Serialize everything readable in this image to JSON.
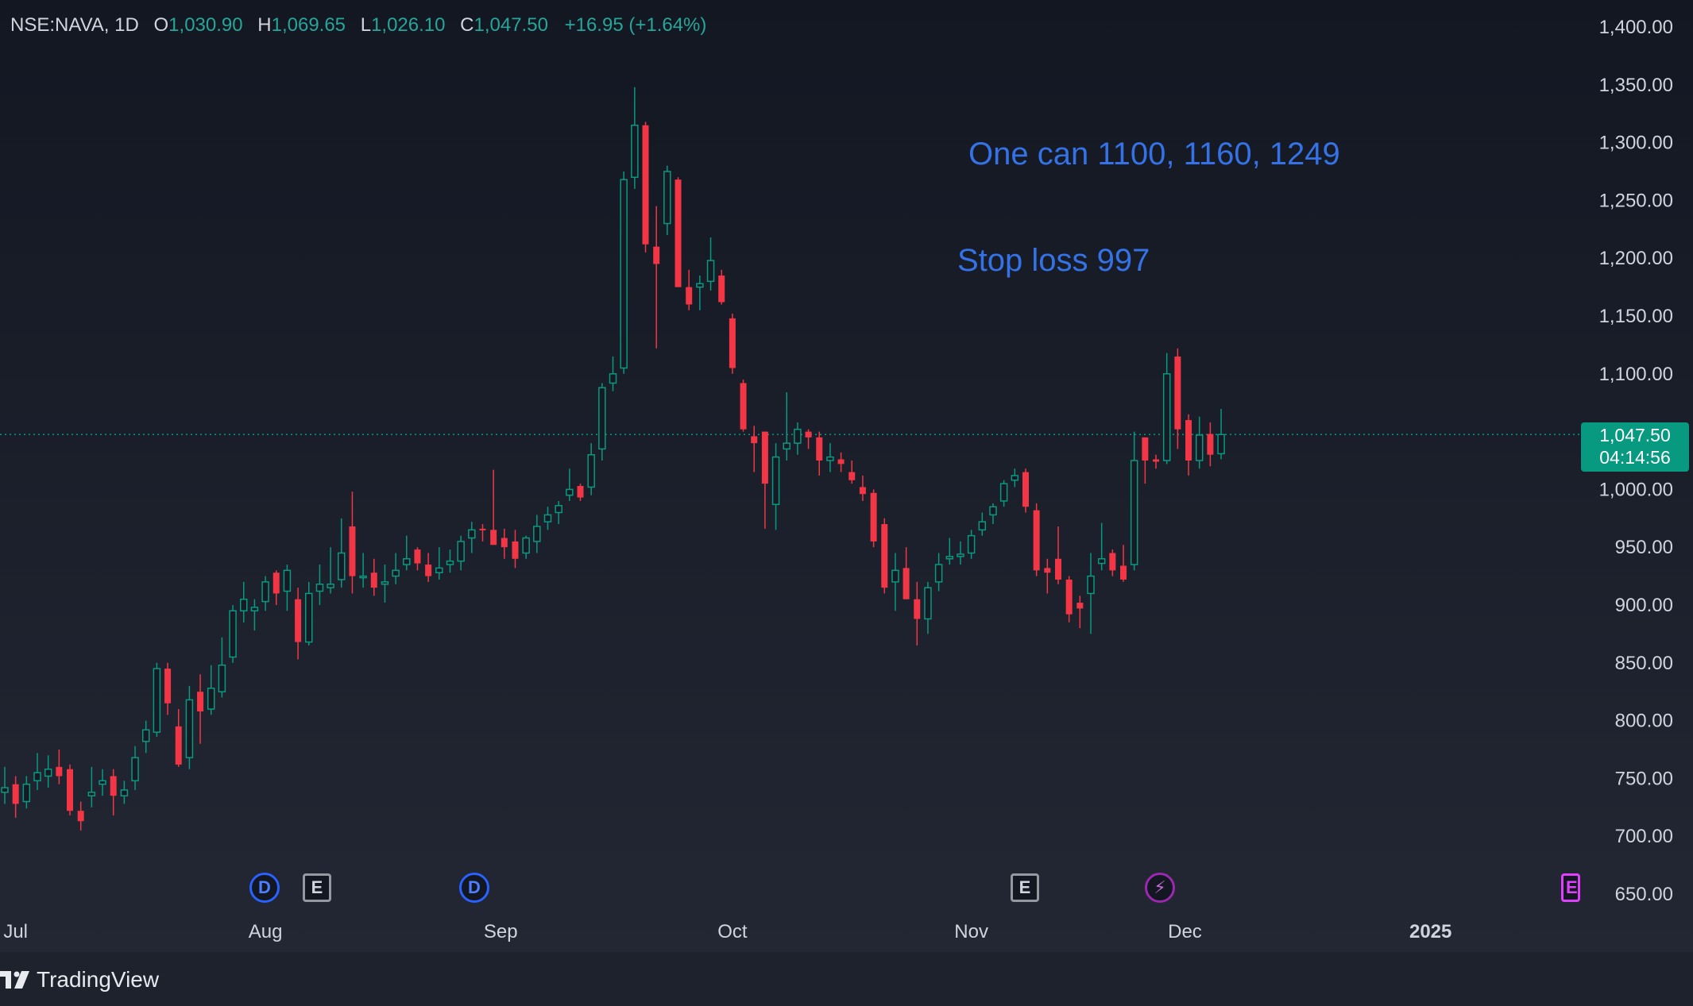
{
  "header": {
    "symbol": "NSE:NAVA, 1D",
    "open_label": "O",
    "open": "1,030.90",
    "high_label": "H",
    "high": "1,069.65",
    "low_label": "L",
    "low": "1,026.10",
    "close_label": "C",
    "close": "1,047.50",
    "change": "+16.95 (+1.64%)"
  },
  "price_tag": {
    "price": "1,047.50",
    "countdown": "04:14:56"
  },
  "annotations": [
    "One can 1100, 1160, 1249",
    "Stop loss 997"
  ],
  "events": [
    {
      "kind": "dividend",
      "glyph": "D",
      "icon": "dividend-icon"
    },
    {
      "kind": "earnings",
      "glyph": "E",
      "icon": "earnings-icon"
    },
    {
      "kind": "dividend",
      "glyph": "D",
      "icon": "dividend-icon"
    },
    {
      "kind": "earnings",
      "glyph": "E",
      "icon": "earnings-icon"
    },
    {
      "kind": "split",
      "glyph": "⚡",
      "icon": "lightning-icon"
    },
    {
      "kind": "earnings",
      "glyph": "E",
      "icon": "earnings-icon"
    }
  ],
  "brand": {
    "name": "TradingView",
    "icon": "tradingview-logo-icon"
  },
  "colors": {
    "up": "#089981",
    "down": "#f23645",
    "background": "#161a25",
    "text": "#d1d4dc",
    "annotation": "#3472e6",
    "last_price_line": "#089981"
  },
  "chart_data": {
    "type": "candlestick",
    "symbol": "NSE:NAVA",
    "interval": "1D",
    "y_ticks": [
      "650.00",
      "700.00",
      "750.00",
      "800.00",
      "850.00",
      "900.00",
      "950.00",
      "1,000.00",
      "1,050.00",
      "1,100.00",
      "1,150.00",
      "1,200.00",
      "1,250.00",
      "1,300.00",
      "1,350.00",
      "1,400.00"
    ],
    "ylim": [
      640,
      1405
    ],
    "x_labels": [
      "Jul",
      "Aug",
      "Sep",
      "Oct",
      "Nov",
      "Dec",
      "2025"
    ],
    "grid": false,
    "last_price": 1047.5,
    "candles": [
      {
        "date": "2024-06-28",
        "o": 738,
        "h": 760,
        "l": 728,
        "c": 742
      },
      {
        "date": "2024-07-01",
        "o": 745,
        "h": 752,
        "l": 716,
        "c": 728
      },
      {
        "date": "2024-07-02",
        "o": 730,
        "h": 752,
        "l": 724,
        "c": 745
      },
      {
        "date": "2024-07-03",
        "o": 748,
        "h": 772,
        "l": 740,
        "c": 755
      },
      {
        "date": "2024-07-04",
        "o": 752,
        "h": 770,
        "l": 742,
        "c": 758
      },
      {
        "date": "2024-07-05",
        "o": 760,
        "h": 775,
        "l": 745,
        "c": 752
      },
      {
        "date": "2024-07-08",
        "o": 758,
        "h": 762,
        "l": 718,
        "c": 722
      },
      {
        "date": "2024-07-09",
        "o": 722,
        "h": 730,
        "l": 705,
        "c": 713
      },
      {
        "date": "2024-07-10",
        "o": 735,
        "h": 760,
        "l": 725,
        "c": 738
      },
      {
        "date": "2024-07-11",
        "o": 745,
        "h": 758,
        "l": 735,
        "c": 748
      },
      {
        "date": "2024-07-12",
        "o": 752,
        "h": 758,
        "l": 718,
        "c": 735
      },
      {
        "date": "2024-07-15",
        "o": 735,
        "h": 748,
        "l": 728,
        "c": 740
      },
      {
        "date": "2024-07-16",
        "o": 748,
        "h": 778,
        "l": 740,
        "c": 768
      },
      {
        "date": "2024-07-17",
        "o": 782,
        "h": 800,
        "l": 772,
        "c": 792
      },
      {
        "date": "2024-07-18",
        "o": 790,
        "h": 850,
        "l": 786,
        "c": 845
      },
      {
        "date": "2024-07-19",
        "o": 845,
        "h": 850,
        "l": 805,
        "c": 815
      },
      {
        "date": "2024-07-22",
        "o": 795,
        "h": 810,
        "l": 760,
        "c": 762
      },
      {
        "date": "2024-07-23",
        "o": 768,
        "h": 830,
        "l": 758,
        "c": 818
      },
      {
        "date": "2024-07-24",
        "o": 825,
        "h": 840,
        "l": 780,
        "c": 808
      },
      {
        "date": "2024-07-25",
        "o": 810,
        "h": 848,
        "l": 805,
        "c": 828
      },
      {
        "date": "2024-07-26",
        "o": 825,
        "h": 872,
        "l": 820,
        "c": 848
      },
      {
        "date": "2024-07-29",
        "o": 855,
        "h": 900,
        "l": 850,
        "c": 895
      },
      {
        "date": "2024-07-30",
        "o": 895,
        "h": 920,
        "l": 885,
        "c": 905
      },
      {
        "date": "2024-07-31",
        "o": 895,
        "h": 905,
        "l": 878,
        "c": 898
      },
      {
        "date": "2024-08-01",
        "o": 903,
        "h": 925,
        "l": 895,
        "c": 920
      },
      {
        "date": "2024-08-02",
        "o": 928,
        "h": 930,
        "l": 900,
        "c": 910
      },
      {
        "date": "2024-08-05",
        "o": 912,
        "h": 935,
        "l": 895,
        "c": 930
      },
      {
        "date": "2024-08-06",
        "o": 905,
        "h": 915,
        "l": 853,
        "c": 868
      },
      {
        "date": "2024-08-07",
        "o": 868,
        "h": 920,
        "l": 865,
        "c": 910
      },
      {
        "date": "2024-08-08",
        "o": 912,
        "h": 935,
        "l": 900,
        "c": 918
      },
      {
        "date": "2024-08-09",
        "o": 915,
        "h": 950,
        "l": 910,
        "c": 918
      },
      {
        "date": "2024-08-12",
        "o": 922,
        "h": 975,
        "l": 915,
        "c": 945
      },
      {
        "date": "2024-08-13",
        "o": 968,
        "h": 998,
        "l": 910,
        "c": 925
      },
      {
        "date": "2024-08-14",
        "o": 924,
        "h": 945,
        "l": 915,
        "c": 925
      },
      {
        "date": "2024-08-15",
        "o": 928,
        "h": 940,
        "l": 908,
        "c": 915
      },
      {
        "date": "2024-08-16",
        "o": 918,
        "h": 935,
        "l": 902,
        "c": 920
      },
      {
        "date": "2024-08-19",
        "o": 925,
        "h": 945,
        "l": 918,
        "c": 930
      },
      {
        "date": "2024-08-20",
        "o": 935,
        "h": 960,
        "l": 930,
        "c": 940
      },
      {
        "date": "2024-08-21",
        "o": 948,
        "h": 950,
        "l": 930,
        "c": 936
      },
      {
        "date": "2024-08-22",
        "o": 935,
        "h": 945,
        "l": 920,
        "c": 925
      },
      {
        "date": "2024-08-23",
        "o": 928,
        "h": 950,
        "l": 922,
        "c": 932
      },
      {
        "date": "2024-08-26",
        "o": 935,
        "h": 948,
        "l": 928,
        "c": 938
      },
      {
        "date": "2024-08-27",
        "o": 938,
        "h": 960,
        "l": 930,
        "c": 955
      },
      {
        "date": "2024-08-28",
        "o": 958,
        "h": 972,
        "l": 945,
        "c": 965
      },
      {
        "date": "2024-08-29",
        "o": 966,
        "h": 970,
        "l": 955,
        "c": 965
      },
      {
        "date": "2024-08-30",
        "o": 965,
        "h": 1017,
        "l": 955,
        "c": 952
      },
      {
        "date": "2024-09-02",
        "o": 958,
        "h": 966,
        "l": 940,
        "c": 950
      },
      {
        "date": "2024-09-03",
        "o": 955,
        "h": 965,
        "l": 932,
        "c": 940
      },
      {
        "date": "2024-09-04",
        "o": 945,
        "h": 960,
        "l": 940,
        "c": 958
      },
      {
        "date": "2024-09-05",
        "o": 955,
        "h": 978,
        "l": 945,
        "c": 968
      },
      {
        "date": "2024-09-06",
        "o": 972,
        "h": 985,
        "l": 965,
        "c": 978
      },
      {
        "date": "2024-09-09",
        "o": 980,
        "h": 990,
        "l": 970,
        "c": 986
      },
      {
        "date": "2024-09-10",
        "o": 995,
        "h": 1018,
        "l": 990,
        "c": 1000
      },
      {
        "date": "2024-09-11",
        "o": 1003,
        "h": 1005,
        "l": 990,
        "c": 993
      },
      {
        "date": "2024-09-12",
        "o": 1002,
        "h": 1040,
        "l": 995,
        "c": 1030
      },
      {
        "date": "2024-09-13",
        "o": 1035,
        "h": 1092,
        "l": 1025,
        "c": 1088
      },
      {
        "date": "2024-09-16",
        "o": 1092,
        "h": 1115,
        "l": 1085,
        "c": 1100
      },
      {
        "date": "2024-09-17",
        "o": 1105,
        "h": 1275,
        "l": 1100,
        "c": 1268
      },
      {
        "date": "2024-09-18",
        "o": 1270,
        "h": 1348,
        "l": 1260,
        "c": 1315
      },
      {
        "date": "2024-09-19",
        "o": 1315,
        "h": 1318,
        "l": 1205,
        "c": 1212
      },
      {
        "date": "2024-09-20",
        "o": 1210,
        "h": 1245,
        "l": 1122,
        "c": 1195
      },
      {
        "date": "2024-09-23",
        "o": 1230,
        "h": 1280,
        "l": 1220,
        "c": 1275
      },
      {
        "date": "2024-09-24",
        "o": 1268,
        "h": 1270,
        "l": 1175,
        "c": 1175
      },
      {
        "date": "2024-09-25",
        "o": 1175,
        "h": 1190,
        "l": 1155,
        "c": 1160
      },
      {
        "date": "2024-09-26",
        "o": 1175,
        "h": 1185,
        "l": 1155,
        "c": 1178
      },
      {
        "date": "2024-09-27",
        "o": 1180,
        "h": 1218,
        "l": 1172,
        "c": 1198
      },
      {
        "date": "2024-09-30",
        "o": 1185,
        "h": 1190,
        "l": 1160,
        "c": 1162
      },
      {
        "date": "2024-10-01",
        "o": 1148,
        "h": 1152,
        "l": 1100,
        "c": 1105
      },
      {
        "date": "2024-10-03",
        "o": 1092,
        "h": 1095,
        "l": 1050,
        "c": 1052
      },
      {
        "date": "2024-10-04",
        "o": 1046,
        "h": 1055,
        "l": 1015,
        "c": 1040
      },
      {
        "date": "2024-10-07",
        "o": 1050,
        "h": 1050,
        "l": 966,
        "c": 1005
      },
      {
        "date": "2024-10-08",
        "o": 987,
        "h": 1040,
        "l": 965,
        "c": 1028
      },
      {
        "date": "2024-10-09",
        "o": 1035,
        "h": 1084,
        "l": 1025,
        "c": 1040
      },
      {
        "date": "2024-10-10",
        "o": 1040,
        "h": 1058,
        "l": 1030,
        "c": 1052
      },
      {
        "date": "2024-10-11",
        "o": 1050,
        "h": 1052,
        "l": 1035,
        "c": 1045
      },
      {
        "date": "2024-10-14",
        "o": 1045,
        "h": 1050,
        "l": 1012,
        "c": 1025
      },
      {
        "date": "2024-10-15",
        "o": 1025,
        "h": 1040,
        "l": 1015,
        "c": 1028
      },
      {
        "date": "2024-10-16",
        "o": 1026,
        "h": 1032,
        "l": 1015,
        "c": 1022
      },
      {
        "date": "2024-10-17",
        "o": 1015,
        "h": 1025,
        "l": 1005,
        "c": 1008
      },
      {
        "date": "2024-10-18",
        "o": 1002,
        "h": 1012,
        "l": 990,
        "c": 996
      },
      {
        "date": "2024-10-21",
        "o": 997,
        "h": 1000,
        "l": 950,
        "c": 955
      },
      {
        "date": "2024-10-22",
        "o": 970,
        "h": 975,
        "l": 910,
        "c": 915
      },
      {
        "date": "2024-10-23",
        "o": 920,
        "h": 945,
        "l": 895,
        "c": 930
      },
      {
        "date": "2024-10-24",
        "o": 932,
        "h": 950,
        "l": 905,
        "c": 905
      },
      {
        "date": "2024-10-25",
        "o": 905,
        "h": 920,
        "l": 865,
        "c": 888
      },
      {
        "date": "2024-10-28",
        "o": 888,
        "h": 920,
        "l": 875,
        "c": 915
      },
      {
        "date": "2024-10-29",
        "o": 920,
        "h": 945,
        "l": 912,
        "c": 935
      },
      {
        "date": "2024-10-30",
        "o": 940,
        "h": 958,
        "l": 935,
        "c": 942
      },
      {
        "date": "2024-10-31",
        "o": 942,
        "h": 955,
        "l": 935,
        "c": 944
      },
      {
        "date": "2024-11-01",
        "o": 945,
        "h": 965,
        "l": 940,
        "c": 960
      },
      {
        "date": "2024-11-04",
        "o": 965,
        "h": 980,
        "l": 960,
        "c": 972
      },
      {
        "date": "2024-11-05",
        "o": 978,
        "h": 988,
        "l": 970,
        "c": 985
      },
      {
        "date": "2024-11-06",
        "o": 990,
        "h": 1008,
        "l": 985,
        "c": 1005
      },
      {
        "date": "2024-11-07",
        "o": 1008,
        "h": 1018,
        "l": 1002,
        "c": 1012
      },
      {
        "date": "2024-11-08",
        "o": 1015,
        "h": 1018,
        "l": 980,
        "c": 985
      },
      {
        "date": "2024-11-11",
        "o": 982,
        "h": 988,
        "l": 925,
        "c": 930
      },
      {
        "date": "2024-11-12",
        "o": 932,
        "h": 940,
        "l": 910,
        "c": 928
      },
      {
        "date": "2024-11-13",
        "o": 940,
        "h": 968,
        "l": 918,
        "c": 922
      },
      {
        "date": "2024-11-14",
        "o": 922,
        "h": 925,
        "l": 885,
        "c": 892
      },
      {
        "date": "2024-11-18",
        "o": 902,
        "h": 908,
        "l": 880,
        "c": 897
      },
      {
        "date": "2024-11-19",
        "o": 910,
        "h": 945,
        "l": 875,
        "c": 925
      },
      {
        "date": "2024-11-20",
        "o": 936,
        "h": 971,
        "l": 930,
        "c": 940
      },
      {
        "date": "2024-11-21",
        "o": 945,
        "h": 948,
        "l": 925,
        "c": 930
      },
      {
        "date": "2024-11-22",
        "o": 934,
        "h": 952,
        "l": 920,
        "c": 922
      },
      {
        "date": "2024-11-25",
        "o": 935,
        "h": 1050,
        "l": 930,
        "c": 1025
      },
      {
        "date": "2024-11-26",
        "o": 1045,
        "h": 1045,
        "l": 1005,
        "c": 1025
      },
      {
        "date": "2024-11-27",
        "o": 1026,
        "h": 1030,
        "l": 1018,
        "c": 1024
      },
      {
        "date": "2024-11-28",
        "o": 1025,
        "h": 1118,
        "l": 1022,
        "c": 1100
      },
      {
        "date": "2024-11-29",
        "o": 1115,
        "h": 1122,
        "l": 1035,
        "c": 1052
      },
      {
        "date": "2024-12-02",
        "o": 1060,
        "h": 1065,
        "l": 1012,
        "c": 1025
      },
      {
        "date": "2024-12-03",
        "o": 1025,
        "h": 1063,
        "l": 1018,
        "c": 1047
      },
      {
        "date": "2024-12-04",
        "o": 1048,
        "h": 1058,
        "l": 1020,
        "c": 1030
      },
      {
        "date": "2024-12-05",
        "o": 1030.9,
        "h": 1069.65,
        "l": 1026.1,
        "c": 1047.5
      }
    ]
  }
}
